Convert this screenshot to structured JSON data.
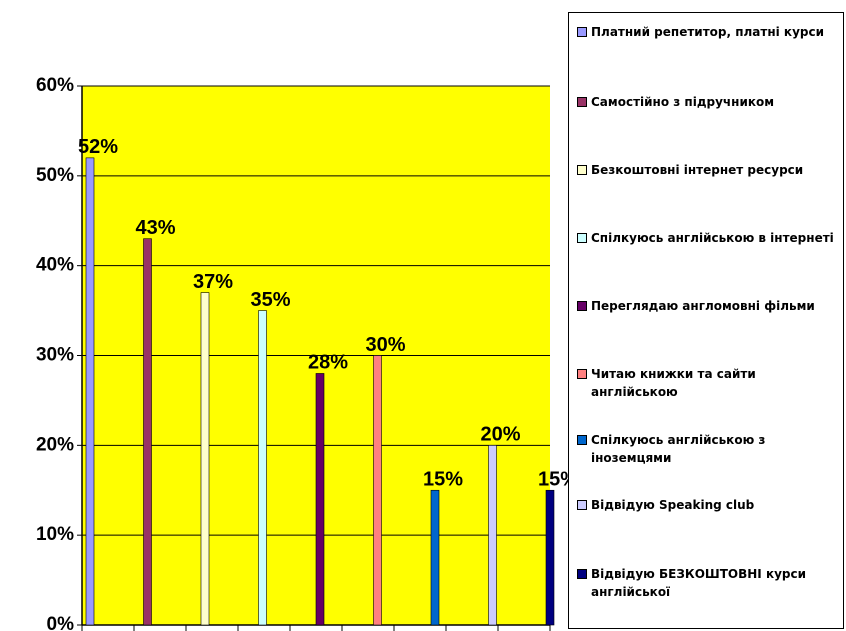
{
  "chart_data": {
    "type": "bar",
    "ylim": [
      0,
      60
    ],
    "yticks": [
      {
        "value": 0,
        "label": "0%"
      },
      {
        "value": 10,
        "label": "10%"
      },
      {
        "value": 20,
        "label": "20%"
      },
      {
        "value": 30,
        "label": "30%"
      },
      {
        "value": 40,
        "label": "40%"
      },
      {
        "value": 50,
        "label": "50%"
      },
      {
        "value": 60,
        "label": "60%"
      }
    ],
    "grid": true,
    "plot_color": "#ffff00",
    "legend": "right",
    "series": [
      {
        "name": "Платний репетитор, платні курси",
        "color": "#9999ff",
        "values": [
          52
        ],
        "value_labels": [
          "52%"
        ]
      },
      {
        "name": "Самостійно з підручником",
        "color": "#993366",
        "values": [
          43
        ],
        "value_labels": [
          "43%"
        ]
      },
      {
        "name": "Безкоштовні інтернет ресурси",
        "color": "#ffffcc",
        "values": [
          37
        ],
        "value_labels": [
          "37%"
        ]
      },
      {
        "name": "Спілкуюсь англійською в інтернеті",
        "color": "#ccffff",
        "values": [
          35
        ],
        "value_labels": [
          "35%"
        ]
      },
      {
        "name": "Переглядаю англомовні фільми",
        "color": "#660066",
        "values": [
          28
        ],
        "value_labels": [
          "28%"
        ]
      },
      {
        "name": "Читаю книжки та сайти англійською",
        "color": "#ff8080",
        "values": [
          30
        ],
        "value_labels": [
          "30%"
        ]
      },
      {
        "name": "Спілкуюсь англійською з іноземцями",
        "color": "#0066cc",
        "values": [
          15
        ],
        "value_labels": [
          "15%"
        ]
      },
      {
        "name": "Відвідую Speaking club",
        "color": "#ccccff",
        "values": [
          20
        ],
        "value_labels": [
          "20%"
        ]
      },
      {
        "name": "Відвідую БЕЗКОШТОВНІ курси англійської",
        "color": "#000080",
        "values": [
          15
        ],
        "value_labels": [
          "15%"
        ]
      }
    ]
  }
}
